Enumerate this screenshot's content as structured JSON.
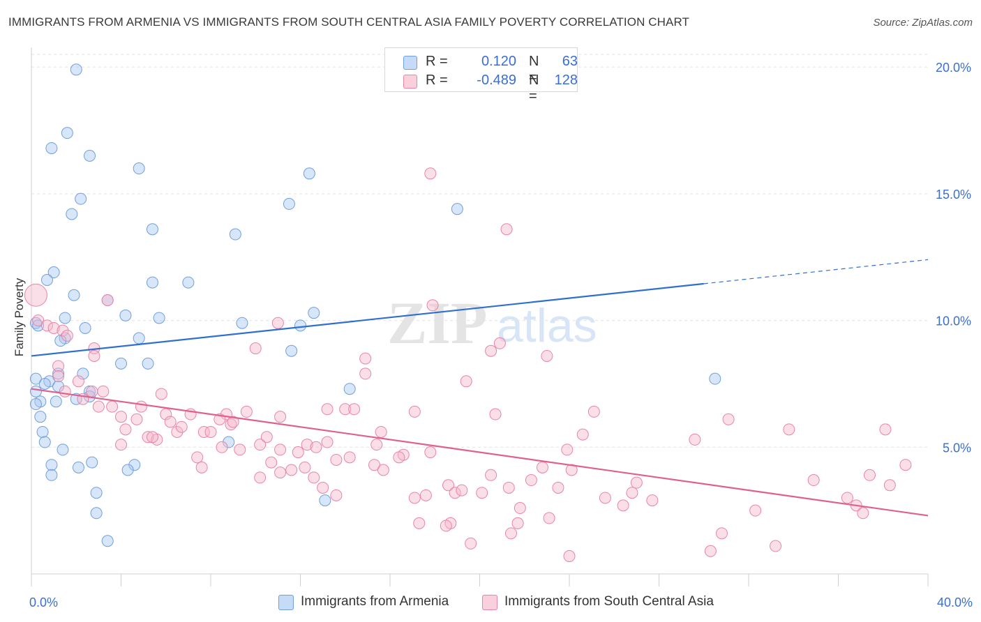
{
  "title": "IMMIGRANTS FROM ARMENIA VS IMMIGRANTS FROM SOUTH CENTRAL ASIA FAMILY POVERTY CORRELATION CHART",
  "source": "Source: ZipAtlas.com",
  "watermark": {
    "zip": "ZIP",
    "atlas": "atlas"
  },
  "legend": {
    "rows": [
      {
        "r_label": "R =",
        "r_value": "0.120",
        "n_label": "N =",
        "n_value": "63",
        "color": "#a9c8f2"
      },
      {
        "r_label": "R =",
        "r_value": "-0.489",
        "n_label": "N =",
        "n_value": "128",
        "color": "#f7b8cc"
      }
    ]
  },
  "chart_data": {
    "type": "scatter",
    "title": "IMMIGRANTS FROM ARMENIA VS IMMIGRANTS FROM SOUTH CENTRAL ASIA FAMILY POVERTY CORRELATION CHART",
    "xlabel": "",
    "ylabel": "Family Poverty",
    "xlim": [
      0,
      40
    ],
    "ylim": [
      0,
      20.5
    ],
    "x_tick_labels": [
      "0.0%",
      "40.0%"
    ],
    "y_ticks": [
      5,
      10,
      15,
      20
    ],
    "y_tick_labels": [
      "5.0%",
      "10.0%",
      "15.0%",
      "20.0%"
    ],
    "grid": true,
    "series": [
      {
        "name": "Immigrants from Armenia",
        "color": "#a9c8f2",
        "stroke": "#6f9fde",
        "trend": {
          "x": [
            0,
            30
          ],
          "y": [
            8.6,
            11.45
          ],
          "dashed_to": [
            40,
            12.4
          ],
          "color": "#2f6fcf"
        },
        "points": [
          [
            2.0,
            19.9
          ],
          [
            1.6,
            17.4
          ],
          [
            0.9,
            16.8
          ],
          [
            2.6,
            16.5
          ],
          [
            4.8,
            16.0
          ],
          [
            12.4,
            15.8
          ],
          [
            2.2,
            14.8
          ],
          [
            1.8,
            14.2
          ],
          [
            11.5,
            14.6
          ],
          [
            19.0,
            14.4
          ],
          [
            5.4,
            13.6
          ],
          [
            9.1,
            13.4
          ],
          [
            1.0,
            11.9
          ],
          [
            0.7,
            11.6
          ],
          [
            1.9,
            11.0
          ],
          [
            5.4,
            11.5
          ],
          [
            7.0,
            11.5
          ],
          [
            3.4,
            10.8
          ],
          [
            4.2,
            10.2
          ],
          [
            5.7,
            10.1
          ],
          [
            12.6,
            10.3
          ],
          [
            1.5,
            10.1
          ],
          [
            0.2,
            9.9
          ],
          [
            2.4,
            9.7
          ],
          [
            9.4,
            9.9
          ],
          [
            12.0,
            9.8
          ],
          [
            1.5,
            9.3
          ],
          [
            4.8,
            9.3
          ],
          [
            11.6,
            8.8
          ],
          [
            4.0,
            8.3
          ],
          [
            5.2,
            8.3
          ],
          [
            1.2,
            7.9
          ],
          [
            2.3,
            7.9
          ],
          [
            0.2,
            7.7
          ],
          [
            0.8,
            7.6
          ],
          [
            0.6,
            7.5
          ],
          [
            1.2,
            7.4
          ],
          [
            0.2,
            7.2
          ],
          [
            2.6,
            7.2
          ],
          [
            14.2,
            7.3
          ],
          [
            0.4,
            6.8
          ],
          [
            1.1,
            6.8
          ],
          [
            0.2,
            6.7
          ],
          [
            2.0,
            6.9
          ],
          [
            0.4,
            6.2
          ],
          [
            0.5,
            5.6
          ],
          [
            0.6,
            5.2
          ],
          [
            8.8,
            5.2
          ],
          [
            1.4,
            4.9
          ],
          [
            0.9,
            4.3
          ],
          [
            2.7,
            4.4
          ],
          [
            4.6,
            4.3
          ],
          [
            2.1,
            4.2
          ],
          [
            4.3,
            4.1
          ],
          [
            0.9,
            3.9
          ],
          [
            2.9,
            3.2
          ],
          [
            13.1,
            2.9
          ],
          [
            2.9,
            2.4
          ],
          [
            3.4,
            1.3
          ],
          [
            30.5,
            7.7
          ],
          [
            0.3,
            9.8
          ],
          [
            1.3,
            9.2
          ],
          [
            2.6,
            7.0
          ]
        ]
      },
      {
        "name": "Immigrants from South Central Asia",
        "color": "#f7b8cc",
        "stroke": "#e884a6",
        "trend": {
          "x": [
            0,
            40
          ],
          "y": [
            7.3,
            2.3
          ],
          "color": "#e0608c"
        },
        "points": [
          [
            0.2,
            11.0
          ],
          [
            0.3,
            10.0
          ],
          [
            0.7,
            9.8
          ],
          [
            1.0,
            9.7
          ],
          [
            1.4,
            9.6
          ],
          [
            1.6,
            9.4
          ],
          [
            3.4,
            10.8
          ],
          [
            2.8,
            8.9
          ],
          [
            2.8,
            8.6
          ],
          [
            1.2,
            8.2
          ],
          [
            1.2,
            7.8
          ],
          [
            2.1,
            7.6
          ],
          [
            3.2,
            7.2
          ],
          [
            1.5,
            7.2
          ],
          [
            2.7,
            7.2
          ],
          [
            5.8,
            7.1
          ],
          [
            3.0,
            6.6
          ],
          [
            3.6,
            6.6
          ],
          [
            4.9,
            6.6
          ],
          [
            2.3,
            6.9
          ],
          [
            4.0,
            6.2
          ],
          [
            4.7,
            6.1
          ],
          [
            6.0,
            6.3
          ],
          [
            7.1,
            6.3
          ],
          [
            8.7,
            6.3
          ],
          [
            9.6,
            6.4
          ],
          [
            11.1,
            6.2
          ],
          [
            4.2,
            5.7
          ],
          [
            5.2,
            5.4
          ],
          [
            5.6,
            5.3
          ],
          [
            6.2,
            6.0
          ],
          [
            6.5,
            5.6
          ],
          [
            6.7,
            5.8
          ],
          [
            7.7,
            5.6
          ],
          [
            8.0,
            5.6
          ],
          [
            8.4,
            6.1
          ],
          [
            8.9,
            5.9
          ],
          [
            9.0,
            6.0
          ],
          [
            10.5,
            5.4
          ],
          [
            13.2,
            6.5
          ],
          [
            4.0,
            5.1
          ],
          [
            5.4,
            5.4
          ],
          [
            7.4,
            4.6
          ],
          [
            7.6,
            4.2
          ],
          [
            8.5,
            5.0
          ],
          [
            9.3,
            4.9
          ],
          [
            10.2,
            5.1
          ],
          [
            10.7,
            4.4
          ],
          [
            11.1,
            4.9
          ],
          [
            11.9,
            4.8
          ],
          [
            12.3,
            5.1
          ],
          [
            12.7,
            5.0
          ],
          [
            13.2,
            5.2
          ],
          [
            13.6,
            4.5
          ],
          [
            14.2,
            4.6
          ],
          [
            15.4,
            5.1
          ],
          [
            15.6,
            5.6
          ],
          [
            16.6,
            4.7
          ],
          [
            17.8,
            4.8
          ],
          [
            20.7,
            6.3
          ],
          [
            10.2,
            3.8
          ],
          [
            11.1,
            4.0
          ],
          [
            11.6,
            4.1
          ],
          [
            12.2,
            4.2
          ],
          [
            12.6,
            3.8
          ],
          [
            13.0,
            3.4
          ],
          [
            13.6,
            3.1
          ],
          [
            15.3,
            4.3
          ],
          [
            15.7,
            4.1
          ],
          [
            16.4,
            4.6
          ],
          [
            17.1,
            3.0
          ],
          [
            17.6,
            3.1
          ],
          [
            18.6,
            3.5
          ],
          [
            18.9,
            3.2
          ],
          [
            19.2,
            3.3
          ],
          [
            20.1,
            3.2
          ],
          [
            20.5,
            3.9
          ],
          [
            21.3,
            3.4
          ],
          [
            21.8,
            2.6
          ],
          [
            22.3,
            3.7
          ],
          [
            22.8,
            4.2
          ],
          [
            23.5,
            3.4
          ],
          [
            24.1,
            4.1
          ],
          [
            25.1,
            6.4
          ],
          [
            24.6,
            5.5
          ],
          [
            23.9,
            4.9
          ],
          [
            25.6,
            3.0
          ],
          [
            26.4,
            2.7
          ],
          [
            26.8,
            3.2
          ],
          [
            27.0,
            3.6
          ],
          [
            27.7,
            2.9
          ],
          [
            29.6,
            5.3
          ],
          [
            31.1,
            6.1
          ],
          [
            32.3,
            2.5
          ],
          [
            33.2,
            1.1
          ],
          [
            33.8,
            5.7
          ],
          [
            34.9,
            3.7
          ],
          [
            36.4,
            3.0
          ],
          [
            36.8,
            2.7
          ],
          [
            37.4,
            3.9
          ],
          [
            38.1,
            5.7
          ],
          [
            37.1,
            2.4
          ],
          [
            38.3,
            3.5
          ],
          [
            39.0,
            4.3
          ],
          [
            17.8,
            15.8
          ],
          [
            21.2,
            13.6
          ],
          [
            17.9,
            10.6
          ],
          [
            11.0,
            9.9
          ],
          [
            10.0,
            8.9
          ],
          [
            20.9,
            9.1
          ],
          [
            20.5,
            8.8
          ],
          [
            14.9,
            8.5
          ],
          [
            23.0,
            8.6
          ],
          [
            14.9,
            7.9
          ],
          [
            19.4,
            7.6
          ],
          [
            17.1,
            6.4
          ],
          [
            14.0,
            6.5
          ],
          [
            14.4,
            6.5
          ],
          [
            18.7,
            2.0
          ],
          [
            19.6,
            1.2
          ],
          [
            21.7,
            2.0
          ],
          [
            21.4,
            1.6
          ],
          [
            23.1,
            2.2
          ],
          [
            30.8,
            1.6
          ],
          [
            30.3,
            0.9
          ],
          [
            24.0,
            0.7
          ],
          [
            17.3,
            2.0
          ],
          [
            18.5,
            1.9
          ]
        ]
      }
    ]
  },
  "bottom_legend": [
    {
      "label": "Immigrants from Armenia",
      "color": "#a9c8f2"
    },
    {
      "label": "Immigrants from South Central Asia",
      "color": "#f7b8cc"
    }
  ]
}
